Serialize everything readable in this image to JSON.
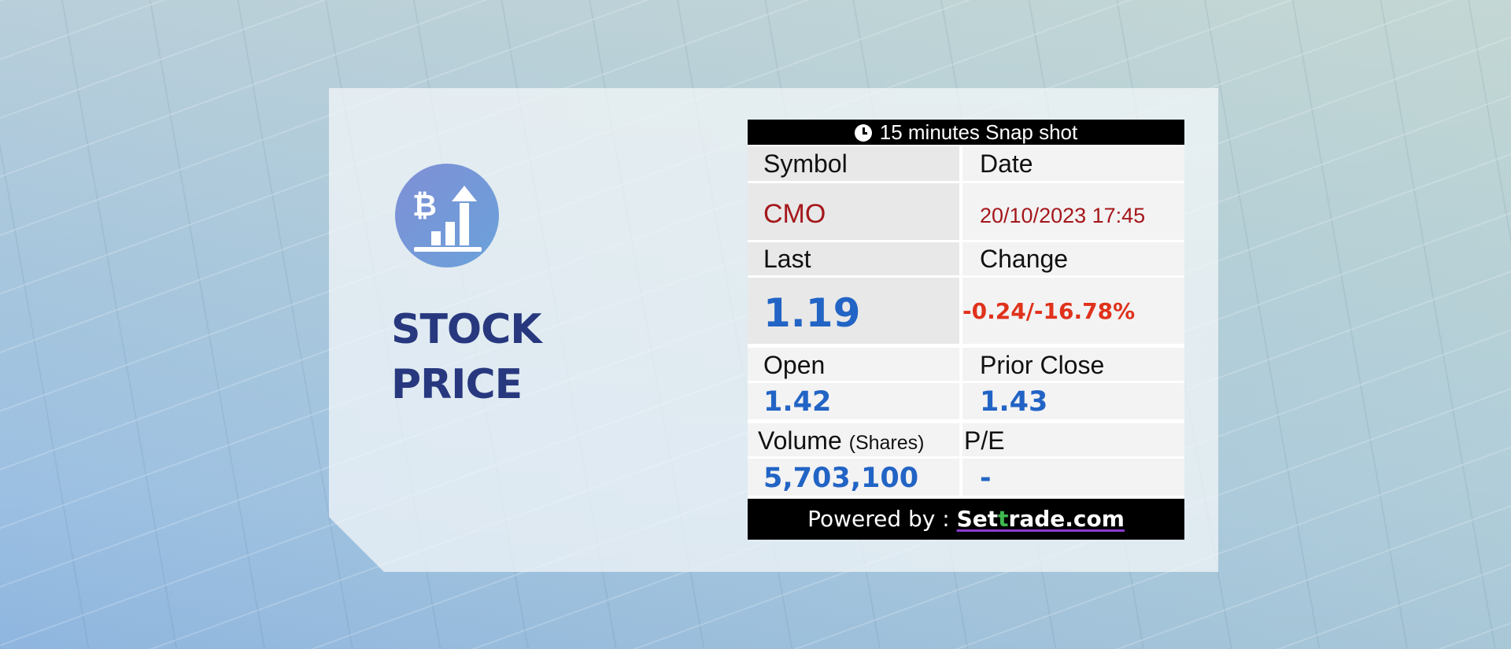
{
  "hero": {
    "title_line1": "STOCK",
    "title_line2": "PRICE",
    "logo_icon": "bitcoin-growth-chart-icon"
  },
  "widget": {
    "header": "15 minutes Snap shot",
    "labels": {
      "symbol": "Symbol",
      "date": "Date",
      "last": "Last",
      "change": "Change",
      "open": "Open",
      "prior_close": "Prior Close",
      "volume": "Volume",
      "volume_unit": "(Shares)",
      "pe": "P/E"
    },
    "values": {
      "symbol": "CMO",
      "date": "20/10/2023 17:45",
      "last": "1.19",
      "change": "-0.24/-16.78%",
      "open": "1.42",
      "prior_close": "1.43",
      "volume": "5,703,100",
      "pe": "-"
    },
    "footer": {
      "powered_by": "Powered by :",
      "brand_part1": "Set",
      "brand_part2": "t",
      "brand_part3": "rade.com"
    }
  },
  "colors": {
    "headline": "#27387f",
    "value_blue": "#2264c5",
    "change_red": "#e0321c",
    "symbol_red": "#a4171b"
  }
}
